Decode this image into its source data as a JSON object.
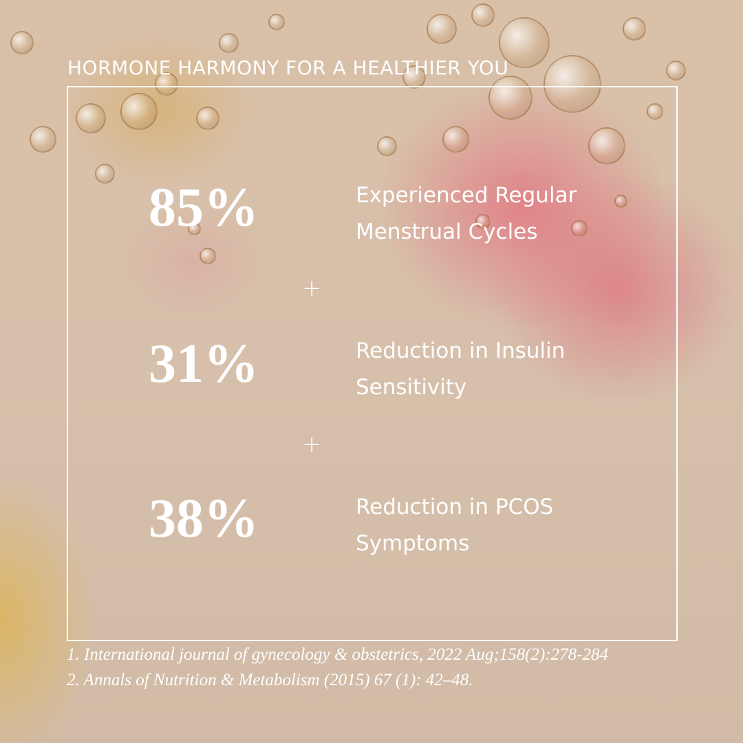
{
  "title": "HORMONE HARMONY FOR A HEALTHIER YOU",
  "stats": [
    {
      "value": "85%",
      "line1": "Experienced Regular",
      "line2": "Menstrual Cycles"
    },
    {
      "value": "31%",
      "line1": "Reduction in Insulin",
      "line2": "Sensitivity"
    },
    {
      "value": "38%",
      "line1": "Reduction in PCOS",
      "line2": "Symptoms"
    }
  ],
  "separator": "+",
  "references": [
    "1. International journal of gynecology & obstetrics, 2022 Aug;158(2):278-284",
    "2. Annals of Nutrition & Metabolism (2015) 67 (1): 42–48."
  ],
  "colors": {
    "text": "#ffffff",
    "background": "#d8c2ac",
    "accent_pink": "#e27882",
    "accent_yellow": "#deb450"
  }
}
